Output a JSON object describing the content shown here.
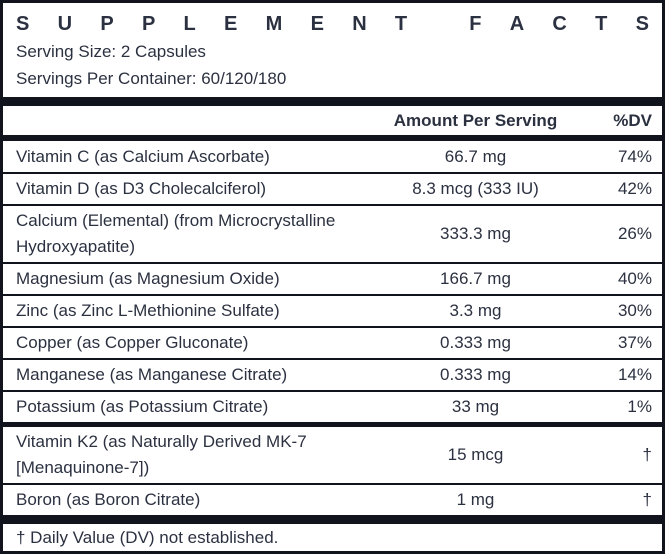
{
  "panel": {
    "title": "SUPPLEMENT FACTS",
    "serving_size": "Serving Size: 2 Capsules",
    "servings_per_container": "Servings Per Container: 60/120/180",
    "columns": {
      "amount": "Amount Per Serving",
      "dv": "%DV"
    },
    "rows": [
      {
        "name": "Vitamin C (as Calcium Ascorbate)",
        "amount": "66.7 mg",
        "dv": "74%"
      },
      {
        "name": "Vitamin D (as D3 Cholecalciferol)",
        "amount": "8.3 mcg (333 IU)",
        "dv": "42%"
      },
      {
        "name": "Calcium (Elemental) (from Microcrystalline Hydroxyapatite)",
        "amount": "333.3 mg",
        "dv": "26%"
      },
      {
        "name": "Magnesium (as Magnesium Oxide)",
        "amount": "166.7 mg",
        "dv": "40%"
      },
      {
        "name": "Zinc (as Zinc L-Methionine Sulfate)",
        "amount": "3.3 mg",
        "dv": "30%"
      },
      {
        "name": "Copper (as Copper Gluconate)",
        "amount": "0.333 mg",
        "dv": "37%"
      },
      {
        "name": "Manganese (as Manganese Citrate)",
        "amount": "0.333 mg",
        "dv": "14%"
      },
      {
        "name": "Potassium (as Potassium Citrate)",
        "amount": "33 mg",
        "dv": "1%"
      },
      {
        "name": "Vitamin K2 (as Naturally Derived MK-7 [Menaquinone-7])",
        "amount": "15 mcg",
        "dv": "†"
      },
      {
        "name": "Boron (as Boron Citrate)",
        "amount": "1 mg",
        "dv": "†"
      }
    ],
    "footnote": "† Daily Value (DV) not established.",
    "colors": {
      "text": "#2b3140",
      "line": "#11141d",
      "background": "#ffffff"
    }
  }
}
